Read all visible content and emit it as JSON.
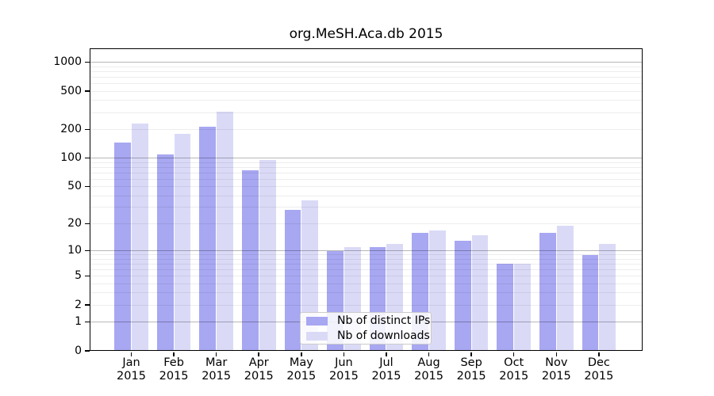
{
  "chart_data": {
    "type": "bar",
    "title": "org.MeSH.Aca.db 2015",
    "y_scale": "log1p",
    "ylim": [
      0,
      1400
    ],
    "y_major_ticks": [
      1000,
      500,
      200,
      100,
      50,
      20,
      10,
      5,
      2,
      1,
      0
    ],
    "grid": "log minor lines + gray decade lines drawn over bars",
    "legend_position": "lower center",
    "categories": [
      "Jan",
      "Feb",
      "Mar",
      "Apr",
      "May",
      "Jun",
      "Jul",
      "Aug",
      "Sep",
      "Oct",
      "Nov",
      "Dec"
    ],
    "x_year_label": "2015",
    "series": [
      {
        "name": "Nb of distinct IPs",
        "color": "#a7a7f2",
        "values": [
          145,
          110,
          213,
          75,
          28,
          10,
          11,
          16,
          13,
          7,
          16,
          9
        ]
      },
      {
        "name": "Nb of downloads",
        "color": "#dadaf7",
        "values": [
          230,
          180,
          305,
          95,
          36,
          11,
          12,
          17,
          15,
          7,
          19,
          12
        ]
      }
    ]
  }
}
